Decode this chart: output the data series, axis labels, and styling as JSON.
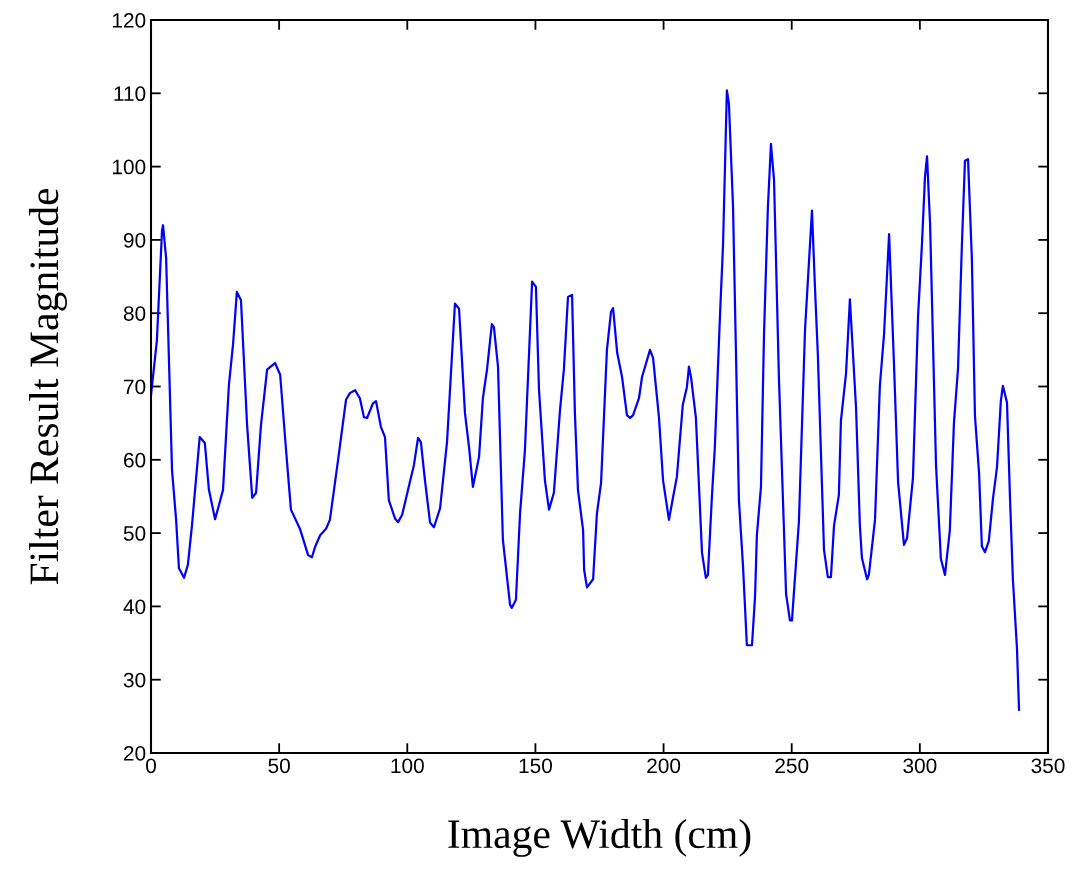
{
  "chart_data": {
    "type": "line",
    "xlabel": "Image Width (cm)",
    "ylabel": "Filter Result Magnitude",
    "xlim": [
      0,
      350
    ],
    "xticks": [
      0,
      50,
      100,
      150,
      200,
      250,
      300,
      350
    ],
    "ylim": [
      20,
      120
    ],
    "yticks": [
      20,
      30,
      40,
      50,
      60,
      70,
      80,
      90,
      100,
      110,
      120
    ],
    "grid": false,
    "legend": false,
    "marker": "none",
    "line_style": "solid",
    "series": [
      {
        "color": "#0000ff",
        "x": [
          0,
          2.3,
          4.3,
          4.7,
          5.9,
          8.2,
          9.8,
          10.9,
          12.9,
          14.4,
          16,
          19,
          21,
          22.6,
          25,
          26.5,
          28.1,
          30.4,
          32,
          33.5,
          35.1,
          37.5,
          39.5,
          41,
          42.9,
          45.3,
          48.4,
          50.4,
          52.7,
          54.6,
          58.1,
          61.3,
          62.8,
          64,
          66,
          68.3,
          69.8,
          73,
          76.1,
          77.6,
          79.6,
          81.5,
          83.1,
          84.3,
          86.6,
          87.8,
          89.7,
          91.3,
          92.8,
          95.2,
          96.4,
          98,
          100.3,
          102.6,
          104.2,
          105.3,
          106.9,
          108.9,
          110.4,
          112.8,
          115.5,
          118.6,
          120.2,
          122.5,
          124.1,
          125.6,
          128,
          129.5,
          131.1,
          133,
          133.8,
          135.4,
          137.3,
          140.1,
          140.8,
          142.4,
          144,
          145.9,
          148.7,
          150.2,
          151.4,
          153.7,
          155.3,
          157.2,
          159.6,
          161.1,
          162.7,
          164.3,
          165.4,
          166.6,
          168.6,
          169,
          170.1,
          172.5,
          174,
          175.6,
          177.9,
          179.5,
          180.3,
          181.9,
          183.8,
          185.7,
          186.9,
          188.1,
          190.4,
          191.6,
          194.7,
          195.9,
          198.2,
          199.8,
          202.1,
          203.7,
          205.2,
          207.5,
          209.1,
          209.9,
          210.7,
          212.6,
          215,
          216.5,
          217.3,
          218.9,
          220,
          222,
          223.2,
          224.7,
          225.5,
          227.1,
          229.4,
          231,
          232.5,
          234.5,
          235.7,
          236.4,
          238,
          239.2,
          240.7,
          241.9,
          243.1,
          245,
          247.8,
          249.3,
          250.1,
          252.8,
          255.2,
          257.9,
          259.1,
          260.2,
          262.6,
          264.1,
          265.3,
          266.5,
          268.4,
          269.2,
          271.2,
          272.7,
          275.1,
          276.6,
          277.4,
          279.4,
          280.1,
          282.5,
          284.4,
          286,
          288,
          289.9,
          291.5,
          293.8,
          295,
          297.3,
          299.3,
          300.8,
          302,
          302.8,
          304,
          306.3,
          308.2,
          309.8,
          311.7,
          313.3,
          314.9,
          316.4,
          317.6,
          318.8,
          320.3,
          321.5,
          323.1,
          324.2,
          325.4,
          326.9,
          328.5,
          330.1,
          331.6,
          332.4,
          334,
          335.2,
          336.3,
          337.9,
          338.7
        ],
        "values": [
          68.8,
          76.3,
          91.3,
          92,
          87.5,
          58.6,
          51.8,
          45.2,
          43.9,
          45.7,
          51.1,
          63.1,
          62.3,
          55.9,
          51.9,
          53.8,
          55.9,
          70.2,
          75.7,
          82.9,
          81.8,
          64.7,
          54.8,
          55.5,
          64.7,
          72.3,
          73.2,
          71.6,
          61.3,
          53.2,
          50.6,
          47,
          46.7,
          48.1,
          49.7,
          50.6,
          51.8,
          60,
          68.2,
          69.1,
          69.5,
          68.4,
          65.8,
          65.7,
          67.7,
          68,
          64.5,
          63.1,
          54.5,
          52,
          51.5,
          52.5,
          55.9,
          59.3,
          63,
          62.4,
          57.2,
          51.4,
          50.8,
          53.4,
          62.4,
          81.3,
          80.6,
          66.4,
          61.7,
          56.3,
          60.4,
          68.4,
          72.3,
          78.5,
          78.1,
          72.7,
          49.1,
          40.2,
          39.8,
          40.9,
          52.7,
          61.3,
          84.3,
          83.6,
          69.5,
          57.2,
          53.2,
          55.5,
          66.8,
          72.3,
          82.2,
          82.5,
          66.4,
          55.9,
          50.4,
          45,
          42.6,
          43.7,
          52.7,
          56.8,
          75,
          80.2,
          80.7,
          74.6,
          71.3,
          66.1,
          65.7,
          66.1,
          68.4,
          71.3,
          75,
          73.9,
          65.8,
          57.2,
          51.8,
          54.9,
          57.7,
          67.5,
          69.9,
          72.7,
          71.3,
          65.8,
          47.3,
          43.9,
          44.3,
          55.2,
          61.7,
          79.6,
          89.3,
          110.4,
          108.6,
          94.6,
          54.5,
          45.5,
          34.7,
          34.7,
          41.4,
          49.7,
          56.3,
          77.3,
          94.4,
          103.1,
          98.2,
          71.3,
          41.7,
          38.1,
          38.1,
          51.5,
          77.8,
          94,
          83.3,
          74.3,
          47.7,
          44,
          44,
          51,
          55.2,
          65.3,
          71.8,
          81.9,
          67.1,
          51,
          46.6,
          43.7,
          44.3,
          51.8,
          70.1,
          77,
          90.8,
          73.1,
          57,
          48.4,
          49.3,
          57.5,
          79.6,
          89.3,
          98.6,
          101.4,
          92.1,
          59.3,
          46.5,
          44.3,
          50.4,
          65,
          72.5,
          89.3,
          100.8,
          101,
          87.4,
          66,
          58.2,
          48.2,
          47.4,
          48.9,
          54.6,
          59,
          68,
          70.1,
          67.8,
          54.5,
          43.7,
          34.2,
          25.9
        ]
      }
    ]
  }
}
